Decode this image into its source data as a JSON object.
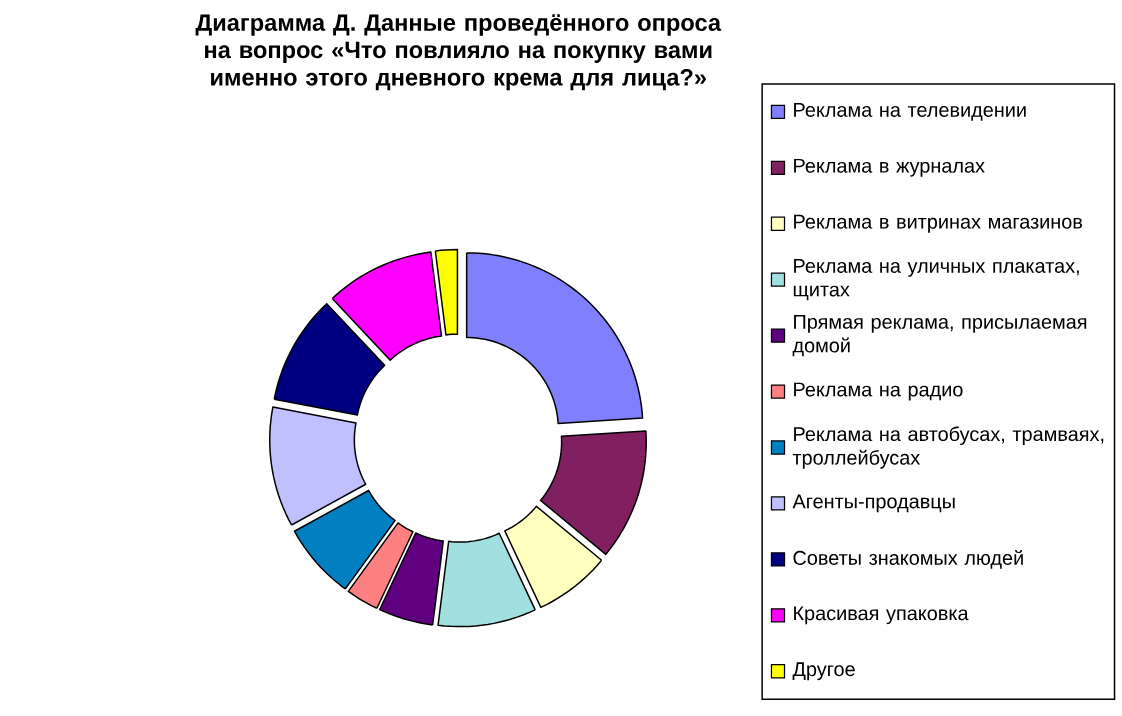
{
  "chart_data": {
    "type": "donut",
    "title": "Диаграмма Д. Данные проведённого опроса на вопрос «Что повлияло на покупку вами именно этого дневного крема для лица?»",
    "categories": [
      "Реклама на телевидении",
      "Реклама в журналах",
      "Реклама в витринах магазинов",
      "Реклама на уличных плакатах, щитах",
      "Прямая реклама, присылаемая домой",
      "Реклама на радио",
      "Реклама на автобусах, трамваях, троллейбусах",
      "Агенты-продавцы",
      "Советы знакомых людей",
      "Красивая упаковка",
      "Другое"
    ],
    "values": [
      24,
      12,
      7,
      9,
      5,
      3,
      7,
      11,
      10,
      10,
      2
    ],
    "colors": [
      "#8080ff",
      "#802060",
      "#ffffc0",
      "#a0e0e0",
      "#600080",
      "#ff8080",
      "#0080c0",
      "#c0c0ff",
      "#000080",
      "#ff00ff",
      "#ffff00"
    ],
    "legend": "right"
  }
}
